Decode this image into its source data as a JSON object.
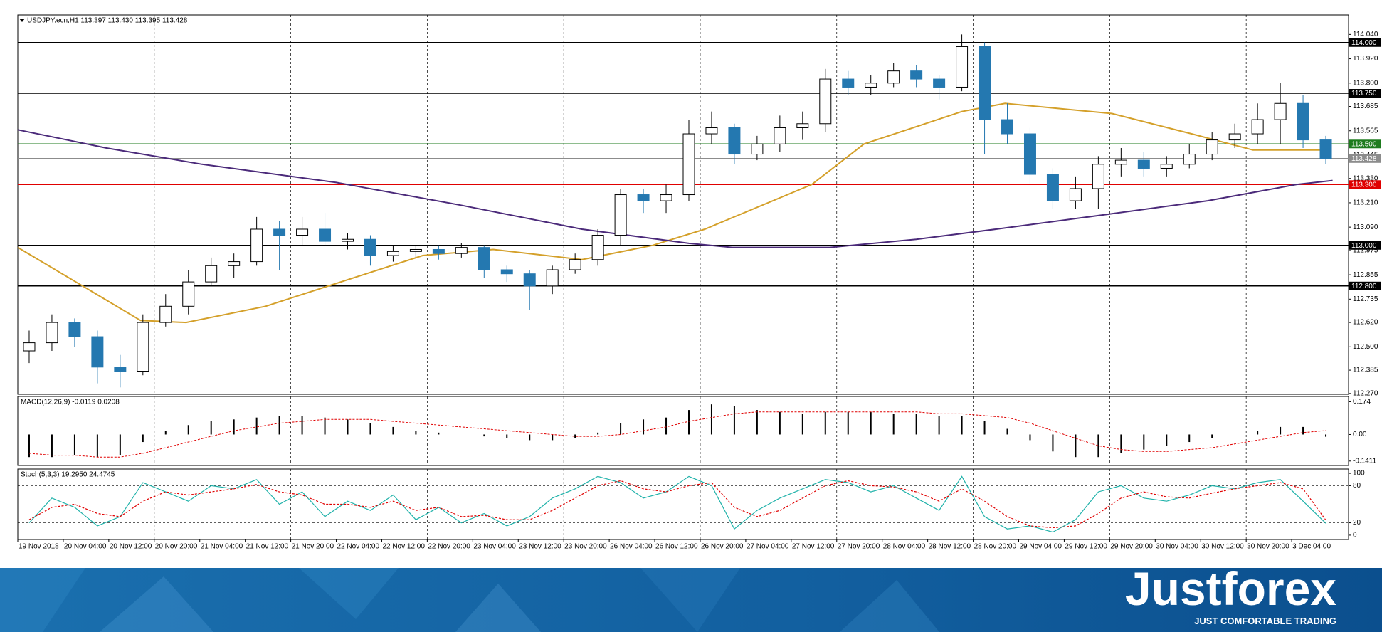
{
  "chart_data": [
    {
      "type": "candlestick",
      "title": "USDJPY.ecn,H1  113.397 113.430 113.395 113.428",
      "xlim": [
        -0.5,
        58.0
      ],
      "xticks": [
        {
          "value": -0.5,
          "label": "19 Nov 2018"
        },
        {
          "value": 1.5,
          "label": "20 Nov 04:00"
        },
        {
          "value": 3.5,
          "label": "20 Nov 12:00"
        },
        {
          "value": 5.5,
          "label": "20 Nov 20:00"
        },
        {
          "value": 7.5,
          "label": "21 Nov 04:00"
        },
        {
          "value": 9.5,
          "label": "21 Nov 12:00"
        },
        {
          "value": 11.5,
          "label": "21 Nov 20:00"
        },
        {
          "value": 13.5,
          "label": "22 Nov 04:00"
        },
        {
          "value": 15.5,
          "label": "22 Nov 12:00"
        },
        {
          "value": 17.5,
          "label": "22 Nov 20:00"
        },
        {
          "value": 19.5,
          "label": "23 Nov 04:00"
        },
        {
          "value": 21.5,
          "label": "23 Nov 12:00"
        },
        {
          "value": 23.5,
          "label": "23 Nov 20:00"
        },
        {
          "value": 25.5,
          "label": "26 Nov 04:00"
        },
        {
          "value": 27.5,
          "label": "26 Nov 12:00"
        },
        {
          "value": 29.5,
          "label": "26 Nov 20:00"
        },
        {
          "value": 31.5,
          "label": "27 Nov 04:00"
        },
        {
          "value": 33.5,
          "label": "27 Nov 12:00"
        },
        {
          "value": 35.5,
          "label": "27 Nov 20:00"
        },
        {
          "value": 37.5,
          "label": "28 Nov 04:00"
        },
        {
          "value": 39.5,
          "label": "28 Nov 12:00"
        },
        {
          "value": 41.5,
          "label": "28 Nov 20:00"
        },
        {
          "value": 43.5,
          "label": "29 Nov 04:00"
        },
        {
          "value": 45.5,
          "label": "29 Nov 12:00"
        },
        {
          "value": 47.5,
          "label": "29 Nov 20:00"
        },
        {
          "value": 49.5,
          "label": "30 Nov 04:00"
        },
        {
          "value": 51.5,
          "label": "30 Nov 12:00"
        },
        {
          "value": 53.5,
          "label": "30 Nov 20:00"
        },
        {
          "value": 55.5,
          "label": "3 Dec 04:00"
        }
      ],
      "ylim": [
        112.266,
        114.136
      ],
      "yticks": [
        {
          "value": 114.04,
          "label": "114.040"
        },
        {
          "value": 113.92,
          "label": "113.920"
        },
        {
          "value": 113.8,
          "label": "113.800"
        },
        113.685,
        113.565,
        113.445,
        {
          "value": 113.33,
          "label": "113.330"
        },
        {
          "value": 113.21,
          "label": "113.210"
        },
        {
          "value": 113.09,
          "label": "113.090"
        },
        112.975,
        112.855,
        112.735,
        {
          "value": 112.62,
          "label": "112.620"
        },
        {
          "value": 112.5,
          "label": "112.500"
        },
        112.385,
        {
          "value": 112.27,
          "label": "112.270"
        }
      ],
      "levels": [
        {
          "value": 114,
          "label": "114.000",
          "color": "#000000"
        },
        {
          "value": 113.75,
          "label": "113.750",
          "color": "#000000"
        },
        {
          "value": 113.5,
          "label": "113.500",
          "color": "#1e7b1e"
        },
        {
          "value": 113.428,
          "color": "#8c8c8c"
        },
        {
          "value": 113.3,
          "label": "113.300",
          "color": "#e00000"
        },
        {
          "value": 113,
          "label": "113.000",
          "color": "#000000"
        },
        {
          "value": 112.8,
          "label": "112.800",
          "color": "#000000"
        }
      ],
      "up_color": "#ffffff",
      "up_outline": "#000000",
      "down_color": "#2478b0",
      "open": [
        112.48,
        112.52,
        112.62,
        112.55,
        112.4,
        112.38,
        112.62,
        112.7,
        112.82,
        112.9,
        112.92,
        113.08,
        113.05,
        113.08,
        113.02,
        113.03,
        112.95,
        112.97,
        112.98,
        112.96,
        112.99,
        112.88,
        112.86,
        112.8,
        112.88,
        112.93,
        113.05,
        113.25,
        113.22,
        113.25,
        113.55,
        113.58,
        113.45,
        113.5,
        113.58,
        113.6,
        113.82,
        113.78,
        113.8,
        113.86,
        113.82,
        113.78,
        113.98,
        113.62,
        113.55,
        113.35,
        113.22,
        113.28,
        113.4,
        113.42,
        113.38,
        113.4,
        113.45,
        113.52,
        113.55,
        113.62,
        113.7,
        113.52
      ],
      "high": [
        112.58,
        112.66,
        112.64,
        112.58,
        112.46,
        112.66,
        112.76,
        112.88,
        112.94,
        112.96,
        113.14,
        113.12,
        113.14,
        113.16,
        113.06,
        113.05,
        113.0,
        113.0,
        113.0,
        113.01,
        113.0,
        112.9,
        112.88,
        112.9,
        112.96,
        113.08,
        113.28,
        113.28,
        113.3,
        113.62,
        113.66,
        113.6,
        113.54,
        113.64,
        113.66,
        113.87,
        113.86,
        113.84,
        113.9,
        113.89,
        113.84,
        114.04,
        114.0,
        113.7,
        113.58,
        113.38,
        113.34,
        113.44,
        113.48,
        113.46,
        113.44,
        113.5,
        113.56,
        113.6,
        113.7,
        113.8,
        113.74,
        113.54
      ],
      "low": [
        112.42,
        112.48,
        112.5,
        112.32,
        112.3,
        112.36,
        112.6,
        112.66,
        112.8,
        112.84,
        112.9,
        112.88,
        113.0,
        113.0,
        112.98,
        112.9,
        112.92,
        112.94,
        112.93,
        112.94,
        112.84,
        112.82,
        112.68,
        112.76,
        112.86,
        112.9,
        113.0,
        113.16,
        113.16,
        113.22,
        113.5,
        113.4,
        113.42,
        113.46,
        113.52,
        113.56,
        113.74,
        113.74,
        113.78,
        113.78,
        113.72,
        113.76,
        113.45,
        113.5,
        113.3,
        113.18,
        113.18,
        113.18,
        113.34,
        113.34,
        113.34,
        113.38,
        113.42,
        113.48,
        113.5,
        113.5,
        113.48,
        113.4
      ],
      "close": [
        112.52,
        112.62,
        112.55,
        112.4,
        112.38,
        112.62,
        112.7,
        112.82,
        112.9,
        112.92,
        113.08,
        113.05,
        113.08,
        113.02,
        113.03,
        112.95,
        112.97,
        112.98,
        112.96,
        112.99,
        112.88,
        112.86,
        112.8,
        112.88,
        112.93,
        113.05,
        113.25,
        113.22,
        113.25,
        113.55,
        113.58,
        113.45,
        113.5,
        113.58,
        113.6,
        113.82,
        113.78,
        113.8,
        113.86,
        113.82,
        113.78,
        113.98,
        113.62,
        113.55,
        113.35,
        113.22,
        113.28,
        113.4,
        113.42,
        113.38,
        113.4,
        113.45,
        113.52,
        113.55,
        113.62,
        113.7,
        113.52,
        113.428
      ],
      "series": [
        {
          "color": "#d4a02a",
          "x": [
            -0.5,
            4.9,
            6.9,
            10.4,
            17.3,
            20.4,
            24.3,
            27.4,
            29.7,
            34.4,
            36.7,
            41.0,
            42.9,
            47.6,
            51.1,
            53.8,
            56.9
          ],
          "values": [
            112.99,
            112.63,
            112.62,
            112.7,
            112.95,
            112.98,
            112.93,
            113.0,
            113.08,
            113.3,
            113.5,
            113.66,
            113.7,
            113.65,
            113.55,
            113.47,
            113.47
          ]
        },
        {
          "color": "#4b2a7a",
          "x": [
            -0.5,
            3.4,
            7.6,
            13.5,
            18.9,
            24.3,
            29.0,
            30.9,
            35.2,
            39.0,
            42.5,
            47.2,
            51.8,
            55.7,
            57.3
          ],
          "values": [
            113.57,
            113.48,
            113.4,
            113.31,
            113.2,
            113.08,
            113.01,
            112.99,
            112.99,
            113.03,
            113.08,
            113.15,
            113.22,
            113.3,
            113.32
          ]
        }
      ]
    },
    {
      "type": "macd",
      "title": "MACD(12,26,9) -0.0119 0.0208",
      "ylim": [
        -0.1646,
        0.2022
      ],
      "yticks": [
        0.174,
        {
          "value": 0,
          "label": "0.00"
        },
        -0.1411
      ],
      "series": [
        {
          "style": "histogram",
          "color": "#000000",
          "values": [
            -0.12,
            -0.12,
            -0.11,
            -0.12,
            -0.11,
            -0.04,
            0.02,
            0.05,
            0.07,
            0.08,
            0.09,
            0.1,
            0.1,
            0.09,
            0.08,
            0.06,
            0.04,
            0.02,
            0.01,
            0.0,
            -0.01,
            -0.02,
            -0.03,
            -0.03,
            -0.02,
            0.01,
            0.06,
            0.08,
            0.09,
            0.13,
            0.16,
            0.15,
            0.13,
            0.12,
            0.11,
            0.12,
            0.12,
            0.12,
            0.11,
            0.11,
            0.1,
            0.1,
            0.07,
            0.03,
            -0.03,
            -0.09,
            -0.12,
            -0.12,
            -0.1,
            -0.08,
            -0.06,
            -0.04,
            -0.02,
            0.0,
            0.02,
            0.04,
            0.04,
            -0.0119
          ]
        },
        {
          "style": "dotted",
          "color": "#e00000",
          "values": [
            -0.1,
            -0.11,
            -0.11,
            -0.12,
            -0.12,
            -0.1,
            -0.07,
            -0.04,
            -0.01,
            0.02,
            0.04,
            0.06,
            0.07,
            0.08,
            0.08,
            0.08,
            0.07,
            0.06,
            0.05,
            0.04,
            0.03,
            0.02,
            0.01,
            0.0,
            -0.01,
            -0.01,
            0.0,
            0.02,
            0.04,
            0.07,
            0.09,
            0.11,
            0.12,
            0.12,
            0.12,
            0.12,
            0.12,
            0.12,
            0.12,
            0.12,
            0.11,
            0.11,
            0.1,
            0.09,
            0.06,
            0.02,
            -0.02,
            -0.06,
            -0.08,
            -0.09,
            -0.09,
            -0.08,
            -0.07,
            -0.05,
            -0.03,
            -0.01,
            0.01,
            0.0208
          ]
        }
      ]
    },
    {
      "type": "stochastic",
      "title": "Stoch(5,3,3) 19.2950 24.4745",
      "ylim": [
        -7,
        107
      ],
      "yticks": [
        100,
        80,
        20,
        0
      ],
      "levels": [
        80,
        20
      ],
      "series": [
        {
          "style": "solid",
          "color": "#20b2aa",
          "values": [
            20,
            60,
            45,
            15,
            30,
            85,
            70,
            55,
            80,
            75,
            90,
            50,
            70,
            30,
            55,
            40,
            65,
            25,
            45,
            20,
            35,
            15,
            30,
            60,
            75,
            95,
            85,
            60,
            70,
            95,
            80,
            10,
            40,
            60,
            75,
            90,
            85,
            70,
            80,
            60,
            40,
            95,
            30,
            10,
            15,
            5,
            25,
            70,
            80,
            60,
            55,
            65,
            80,
            75,
            85,
            90,
            55,
            19.295
          ]
        },
        {
          "style": "dotted",
          "color": "#e00000",
          "values": [
            25,
            45,
            50,
            35,
            30,
            55,
            70,
            65,
            70,
            75,
            82,
            70,
            65,
            50,
            50,
            45,
            55,
            40,
            45,
            30,
            32,
            25,
            25,
            40,
            60,
            80,
            88,
            75,
            70,
            80,
            85,
            45,
            30,
            40,
            60,
            80,
            88,
            80,
            78,
            70,
            55,
            75,
            55,
            30,
            15,
            12,
            15,
            35,
            60,
            70,
            62,
            60,
            68,
            75,
            80,
            85,
            75,
            24.4745
          ]
        }
      ]
    }
  ],
  "footer": {
    "brand": "Justforex",
    "tagline": "JUST COMFORTABLE TRADING"
  }
}
